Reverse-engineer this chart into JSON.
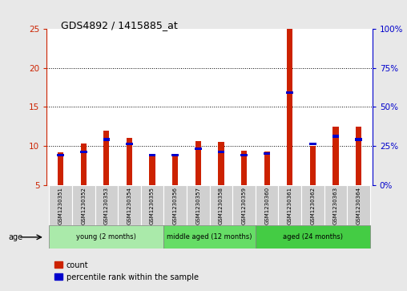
{
  "title": "GDS4892 / 1415885_at",
  "samples": [
    "GSM1230351",
    "GSM1230352",
    "GSM1230353",
    "GSM1230354",
    "GSM1230355",
    "GSM1230356",
    "GSM1230357",
    "GSM1230358",
    "GSM1230359",
    "GSM1230360",
    "GSM1230361",
    "GSM1230362",
    "GSM1230363",
    "GSM1230364"
  ],
  "count_values": [
    9.2,
    10.3,
    12.0,
    11.0,
    8.7,
    8.7,
    10.6,
    10.5,
    9.4,
    9.3,
    25.0,
    10.0,
    12.5,
    12.5
  ],
  "percentile_values_pct": [
    20,
    22,
    30,
    27,
    20,
    20,
    24,
    22,
    20,
    21,
    60,
    27,
    32,
    30
  ],
  "ylim_left": [
    5,
    25
  ],
  "yticks_left": [
    5,
    10,
    15,
    20,
    25
  ],
  "ylim_right": [
    0,
    100
  ],
  "yticks_right": [
    0,
    25,
    50,
    75,
    100
  ],
  "groups": [
    {
      "label": "young (2 months)",
      "start": 0,
      "end": 5
    },
    {
      "label": "middle aged (12 months)",
      "start": 5,
      "end": 9
    },
    {
      "label": "aged (24 months)",
      "start": 9,
      "end": 14
    }
  ],
  "group_colors": [
    "#aaeaaa",
    "#66dd66",
    "#44cc44"
  ],
  "bar_color_red": "#cc2200",
  "bar_color_blue": "#0000cc",
  "bar_width": 0.25,
  "grid_color": "black",
  "bg_color": "#e8e8e8",
  "plot_bg_color": "#ffffff",
  "sample_box_color": "#d0d0d0",
  "legend_items": [
    "count",
    "percentile rank within the sample"
  ],
  "age_label": "age"
}
